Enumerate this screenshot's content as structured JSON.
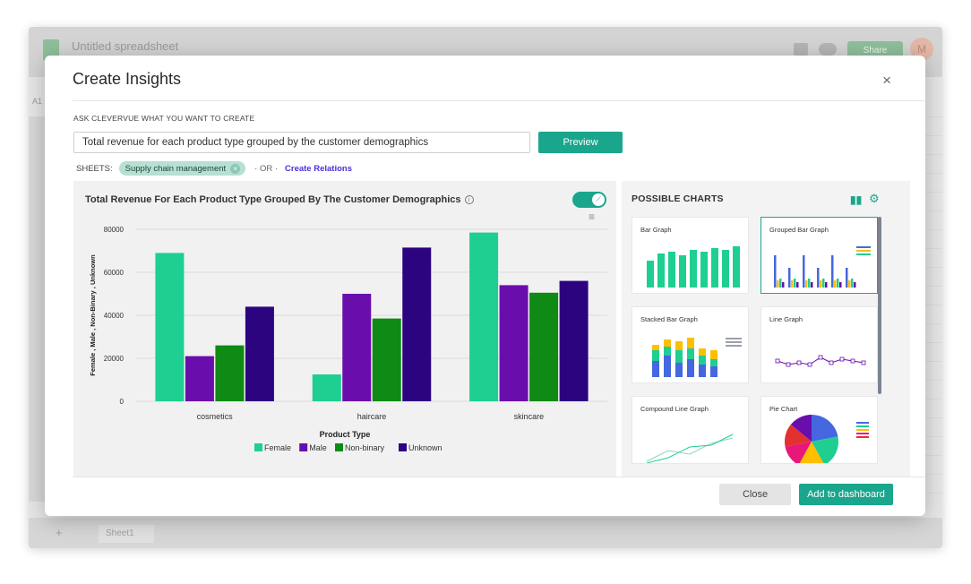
{
  "background_app": {
    "doc_title": "Untitled spreadsheet",
    "share_label": "Share",
    "avatar_letter": "M",
    "cell_ref": "A1",
    "sheet_tab": "Sheet1",
    "add_sheet": "+"
  },
  "modal": {
    "title": "Create Insights",
    "close_glyph": "×",
    "ask_label": "ASK CLEVERVUE WHAT YOU WANT TO CREATE",
    "query_value": "Total revenue for each product type grouped by the customer demographics",
    "preview_label": "Preview",
    "sheets_label": "SHEETS:",
    "sheet_chip": "Supply chain management",
    "or_label": "· OR ·",
    "create_relations": "Create Relations",
    "close_label": "Close",
    "add_label": "Add to dashboard"
  },
  "chart_data": {
    "type": "bar",
    "title": "Total Revenue For Each Product Type Grouped By The Customer Demographics",
    "xlabel": "Product Type",
    "ylabel": "Female , Male , Non-Binary , Unknown",
    "categories": [
      "cosmetics",
      "haircare",
      "skincare"
    ],
    "ylim": [
      0,
      80000
    ],
    "yticks": [
      "0",
      "20000",
      "40000",
      "60000",
      "80000"
    ],
    "series": [
      {
        "name": "Female",
        "color": "#1ecf91",
        "values": [
          69000,
          12500,
          78500
        ]
      },
      {
        "name": "Male",
        "color": "#6a0dad",
        "values": [
          21000,
          50000,
          54000
        ]
      },
      {
        "name": "Non-binary",
        "color": "#0f8a14",
        "values": [
          26000,
          38500,
          50500
        ]
      },
      {
        "name": "Unknown",
        "color": "#2c0480",
        "values": [
          44000,
          71500,
          56000
        ]
      }
    ],
    "legend_position": "bottom-center"
  },
  "possible_charts": {
    "title": "POSSIBLE CHARTS",
    "items": [
      {
        "label": "Bar Graph",
        "kind": "bar",
        "selected": false
      },
      {
        "label": "Grouped Bar Graph",
        "kind": "grouped",
        "selected": true
      },
      {
        "label": "Stacked Bar Graph",
        "kind": "stacked",
        "selected": false
      },
      {
        "label": "Line Graph",
        "kind": "line",
        "selected": false
      },
      {
        "label": "Compound Line Graph",
        "kind": "compound",
        "selected": false
      },
      {
        "label": "Pie Chart",
        "kind": "pie",
        "selected": false
      }
    ]
  },
  "icons": {
    "info": "info-icon",
    "toggle": "chart-toggle-icon",
    "menu": "hamburger-menu-icon",
    "bar_chart": "bar-chart-icon",
    "settings": "gear-icon",
    "close": "close-icon"
  },
  "colors": {
    "accent": "#1aa68c",
    "link": "#4d2fd6"
  }
}
